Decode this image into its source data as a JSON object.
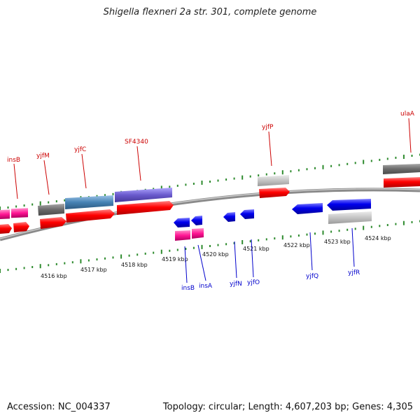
{
  "title": "Shigella flexneri 2a str. 301, complete genome",
  "footer": {
    "accession": "Accession: NC_004337",
    "summary": "Topology: circular; Length: 4,607,203 bp; Genes: 4,305"
  },
  "colors": {
    "label_top": "#cc0000",
    "label_bottom": "#0000cc",
    "backbone": "#8a8a8a",
    "tick": "#2e8b2e",
    "cds_forward": "#ff0000",
    "cds_reverse": "#0000ee",
    "gene_dark": "#707070",
    "gene_light": "#c4c4c4",
    "gene_pink": "#ff1493",
    "gene_steel": "#4682b4",
    "gene_slate": "#6a5acd"
  },
  "scale": {
    "unit": "kbp",
    "major_ticks": [
      {
        "kbp": 4516,
        "label": "4516 kbp"
      },
      {
        "kbp": 4517,
        "label": "4517 kbp"
      },
      {
        "kbp": 4518,
        "label": "4518 kbp"
      },
      {
        "kbp": 4519,
        "label": "4519 kbp"
      },
      {
        "kbp": 4520,
        "label": "4520 kbp"
      },
      {
        "kbp": 4521,
        "label": "4521 kbp"
      },
      {
        "kbp": 4522,
        "label": "4522 kbp"
      },
      {
        "kbp": 4523,
        "label": "4523 kbp"
      },
      {
        "kbp": 4524,
        "label": "4524 kbp"
      }
    ]
  },
  "top_labels": [
    "insB",
    "yjfM",
    "yjfC",
    "SF4340",
    "yjfP",
    "ulaA"
  ],
  "bottom_labels": [
    "insB",
    "insA",
    "yjfN",
    "yjfO",
    "yjfQ",
    "yjfR"
  ]
}
